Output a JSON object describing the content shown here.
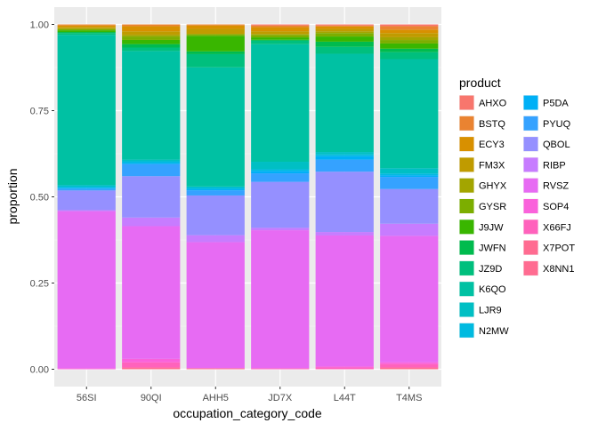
{
  "chart_data": {
    "type": "bar",
    "stacked": "fill",
    "xlabel": "occupation_category_code",
    "ylabel": "proportion",
    "ylim": [
      0,
      1
    ],
    "yticks": [
      "0.00",
      "0.25",
      "0.50",
      "0.75",
      "1.00"
    ],
    "yticks_values": [
      0,
      0.25,
      0.5,
      0.75,
      1
    ],
    "categories": [
      "56SI",
      "90QI",
      "AHH5",
      "JD7X",
      "L44T",
      "T4MS"
    ],
    "legend_title": "product",
    "legend_position": "right",
    "grid": true,
    "series": [
      {
        "name": "AHXO",
        "color": "#F8766D",
        "values": [
          0.0,
          0.0,
          0.0,
          0.003,
          0.003,
          0.005
        ]
      },
      {
        "name": "BSTQ",
        "color": "#EA8331",
        "values": [
          0.003,
          0.005,
          0.003,
          0.005,
          0.003,
          0.01
        ]
      },
      {
        "name": "ECY3",
        "color": "#D89000",
        "values": [
          0.005,
          0.015,
          0.01,
          0.012,
          0.007,
          0.01
        ]
      },
      {
        "name": "FM3X",
        "color": "#C09B00",
        "values": [
          0.003,
          0.01,
          0.015,
          0.008,
          0.007,
          0.012
        ]
      },
      {
        "name": "GHYX",
        "color": "#A3A500",
        "values": [
          0.003,
          0.005,
          0.0,
          0.003,
          0.005,
          0.008
        ]
      },
      {
        "name": "GYSR",
        "color": "#7CAE00",
        "values": [
          0.003,
          0.01,
          0.005,
          0.007,
          0.01,
          0.01
        ]
      },
      {
        "name": "J9JW",
        "color": "#39B600",
        "values": [
          0.005,
          0.012,
          0.045,
          0.007,
          0.015,
          0.015
        ]
      },
      {
        "name": "JWFN",
        "color": "#00BB4E",
        "values": [
          0.003,
          0.01,
          0.008,
          0.003,
          0.015,
          0.01
        ]
      },
      {
        "name": "JZ9D",
        "color": "#00BF7D",
        "values": [
          0.005,
          0.01,
          0.038,
          0.01,
          0.02,
          0.02
        ]
      },
      {
        "name": "K6QO",
        "color": "#00C1A3",
        "values": [
          0.435,
          0.315,
          0.345,
          0.345,
          0.285,
          0.315
        ]
      },
      {
        "name": "LJR9",
        "color": "#00BFC4",
        "values": [
          0.005,
          0.005,
          0.003,
          0.022,
          0.007,
          0.015
        ]
      },
      {
        "name": "N2MW",
        "color": "#00BAE0",
        "values": [
          0.003,
          0.005,
          0.005,
          0.005,
          0.005,
          0.005
        ]
      },
      {
        "name": "P5DA",
        "color": "#00B0F6",
        "values": [
          0.003,
          0.003,
          0.003,
          0.007,
          0.01,
          0.005
        ]
      },
      {
        "name": "PYUQ",
        "color": "#35A2FF",
        "values": [
          0.005,
          0.035,
          0.015,
          0.025,
          0.035,
          0.035
        ]
      },
      {
        "name": "QBOL",
        "color": "#9590FF",
        "values": [
          0.057,
          0.12,
          0.115,
          0.135,
          0.175,
          0.1
        ]
      },
      {
        "name": "RIBP",
        "color": "#C77CFF",
        "values": [
          0.003,
          0.025,
          0.02,
          0.007,
          0.01,
          0.035
        ]
      },
      {
        "name": "RVSZ",
        "color": "#E76BF3",
        "values": [
          0.455,
          0.385,
          0.365,
          0.405,
          0.38,
          0.365
        ]
      },
      {
        "name": "SOP4",
        "color": "#FA62DB",
        "values": [
          0.003,
          0.01,
          0.0,
          0.0,
          0.003,
          0.005
        ]
      },
      {
        "name": "X66FJ",
        "color": "#FF62BC",
        "values": [
          0.0,
          0.015,
          0.0,
          0.003,
          0.005,
          0.01
        ]
      },
      {
        "name": "X7POT",
        "color": "#FF6C91",
        "values": [
          0.0,
          0.005,
          0.003,
          0.0,
          0.0,
          0.005
        ]
      },
      {
        "name": "X8NN1",
        "color": "#FF6C91",
        "values": [
          0.0,
          0.0,
          0.0,
          0.0,
          0.0,
          0.0
        ]
      }
    ]
  }
}
